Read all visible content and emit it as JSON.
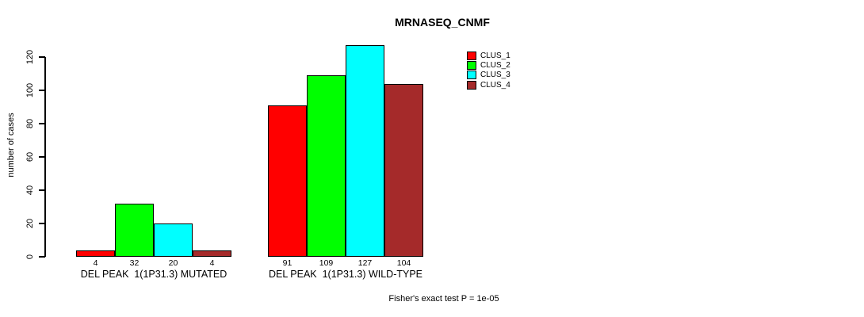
{
  "title": "MRNASEQ_CNMF",
  "footer_annotation": "Fisher's exact test P = 1e-05",
  "colors": {
    "clus_1": "#FF0000",
    "clus_2": "#00FF00",
    "clus_3": "#00FFFF",
    "clus_4": "#A52A2A",
    "axis": "#000000",
    "background": "#FFFFFF"
  },
  "legend": {
    "items": [
      {
        "label": "CLUS_1",
        "color": "#FF0000"
      },
      {
        "label": "CLUS_2",
        "color": "#00FF00"
      },
      {
        "label": "CLUS_3",
        "color": "#00FFFF"
      },
      {
        "label": "CLUS_4",
        "color": "#A52A2A"
      }
    ]
  },
  "chart_data": {
    "type": "bar",
    "title": "MRNASEQ_CNMF",
    "xlabel": "",
    "ylabel": "number of cases",
    "ylim": [
      0,
      120
    ],
    "yticks": [
      0,
      20,
      40,
      60,
      80,
      100,
      120
    ],
    "grid": false,
    "legend_position": "top-right",
    "categories": [
      "DEL PEAK  1(1P31.3) MUTATED",
      "DEL PEAK  1(1P31.3) WILD-TYPE"
    ],
    "series": [
      {
        "name": "CLUS_1",
        "color": "#FF0000",
        "values": [
          4,
          91
        ]
      },
      {
        "name": "CLUS_2",
        "color": "#00FF00",
        "values": [
          32,
          109
        ]
      },
      {
        "name": "CLUS_3",
        "color": "#00FFFF",
        "values": [
          20,
          127
        ]
      },
      {
        "name": "CLUS_4",
        "color": "#A52A2A",
        "values": [
          4,
          104
        ]
      }
    ],
    "bar_value_labels": [
      [
        4,
        32,
        20,
        4
      ],
      [
        91,
        109,
        127,
        104
      ]
    ],
    "annotation": "Fisher's exact test P = 1e-05"
  }
}
